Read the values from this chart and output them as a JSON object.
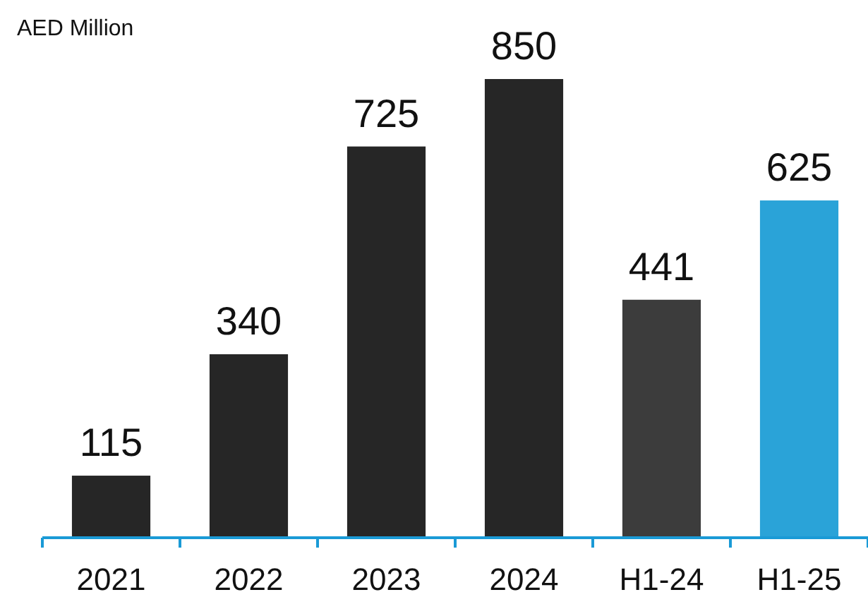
{
  "chart_data": {
    "type": "bar",
    "ylabel": "AED Million",
    "categories": [
      "2021",
      "2022",
      "2023",
      "2024",
      "H1-24",
      "H1-25"
    ],
    "values": [
      115,
      340,
      725,
      850,
      441,
      625
    ],
    "colors": [
      "#262626",
      "#262626",
      "#262626",
      "#262626",
      "#3c3c3c",
      "#2aa3d8"
    ],
    "data_labels": true
  }
}
